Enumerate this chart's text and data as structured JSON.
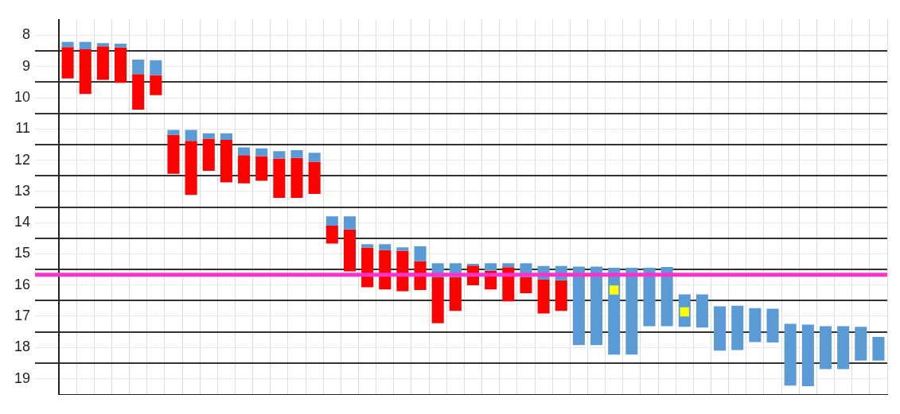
{
  "chart_data": {
    "type": "bar",
    "categories": [
      null,
      null,
      null,
      null,
      null,
      null,
      null,
      null,
      null,
      null,
      null,
      null,
      null,
      null,
      null,
      null,
      null,
      null,
      null,
      null,
      null,
      null,
      null,
      null,
      null,
      null,
      null,
      null,
      null,
      null,
      null,
      null,
      null,
      null,
      null,
      null,
      null,
      null,
      null,
      null,
      null,
      null,
      null,
      null,
      null,
      null,
      null
    ],
    "series": [
      {
        "color": "#5b9bd5",
        "base": [
          8.21,
          8.21,
          8.25,
          8.27,
          8.78,
          8.8,
          11.03,
          11.03,
          11.14,
          11.14,
          11.59,
          11.62,
          11.71,
          11.68,
          11.76,
          13.8,
          13.8,
          14.69,
          14.69,
          14.79,
          14.76,
          15.3,
          15.3,
          15.32,
          15.3,
          15.3,
          15.3,
          15.39,
          15.39,
          15.41,
          15.41,
          15.45,
          15.45,
          15.45,
          15.42,
          16.3,
          16.3,
          16.68,
          16.66,
          16.74,
          16.76,
          17.24,
          17.27,
          17.32,
          17.32,
          17.34,
          17.66
        ],
        "values": [
          0.17,
          0.24,
          0.1,
          0.12,
          0.46,
          0.48,
          0.16,
          0.35,
          0.17,
          0.21,
          0.25,
          0.25,
          0.24,
          0.25,
          0.29,
          0.3,
          0.42,
          0.11,
          0.19,
          0.11,
          0.48,
          0.45,
          0.45,
          0.06,
          0.24,
          0.13,
          0.45,
          0.44,
          0.46,
          2.51,
          2.51,
          2.78,
          2.78,
          1.87,
          1.9,
          1.04,
          1.06,
          1.42,
          1.42,
          1.09,
          1.08,
          1.98,
          1.97,
          1.37,
          1.37,
          1.08,
          0.76
        ]
      },
      {
        "color": "#ff0000",
        "base": [
          8.38,
          8.45,
          8.35,
          8.39,
          9.24,
          9.28,
          11.19,
          11.38,
          11.31,
          11.35,
          11.84,
          11.87,
          11.95,
          11.93,
          12.05,
          14.1,
          14.22,
          14.8,
          14.88,
          14.9,
          15.24,
          15.75,
          15.75,
          15.38,
          15.54,
          15.43,
          15.75,
          15.83,
          15.85,
          null,
          null,
          null,
          null,
          null,
          null,
          null,
          null,
          null,
          null,
          null,
          null,
          null,
          null,
          null,
          null,
          null,
          null
        ],
        "values": [
          1.0,
          1.43,
          1.08,
          1.13,
          1.14,
          0.64,
          1.25,
          1.73,
          1.03,
          1.36,
          0.9,
          0.79,
          1.26,
          1.28,
          1.03,
          0.57,
          1.34,
          1.27,
          1.26,
          1.3,
          0.92,
          1.47,
          1.08,
          0.63,
          0.6,
          1.09,
          0.51,
          1.08,
          0.98,
          null,
          null,
          null,
          null,
          null,
          null,
          null,
          null,
          null,
          null,
          null,
          null,
          null,
          null,
          null,
          null,
          null,
          null
        ]
      },
      {
        "type": "scatter",
        "color": "#ffff00",
        "marker": "square",
        "values": [
          null,
          null,
          null,
          null,
          null,
          null,
          null,
          null,
          null,
          null,
          null,
          null,
          null,
          null,
          null,
          null,
          null,
          null,
          null,
          null,
          null,
          null,
          null,
          null,
          null,
          null,
          null,
          null,
          null,
          null,
          null,
          16.16,
          null,
          null,
          null,
          16.86,
          null,
          null,
          null,
          null,
          null,
          null,
          null,
          null,
          null,
          null,
          null
        ]
      }
    ],
    "ylim": [
      19.5,
      7.5
    ],
    "yticks": [
      8,
      {
        "value": 8.5,
        "label": null
      },
      9,
      {
        "value": 9.5,
        "label": null
      },
      10,
      {
        "value": 10.5,
        "label": null
      },
      11,
      {
        "value": 11.5,
        "label": null
      },
      12,
      {
        "value": 12.5,
        "label": null
      },
      13,
      {
        "value": 13.5,
        "label": null
      },
      14,
      {
        "value": 14.5,
        "label": null
      },
      15,
      {
        "value": 15.5,
        "label": null
      },
      16,
      {
        "value": 16.5,
        "label": null
      },
      17,
      {
        "value": 17.5,
        "label": null
      },
      18,
      {
        "value": 18.5,
        "label": null
      },
      19
    ],
    "ref_lines": [
      {
        "axis": "y",
        "value": 15.67,
        "color": "#ff33cc"
      }
    ],
    "grid": true,
    "tick_labels": "y"
  }
}
